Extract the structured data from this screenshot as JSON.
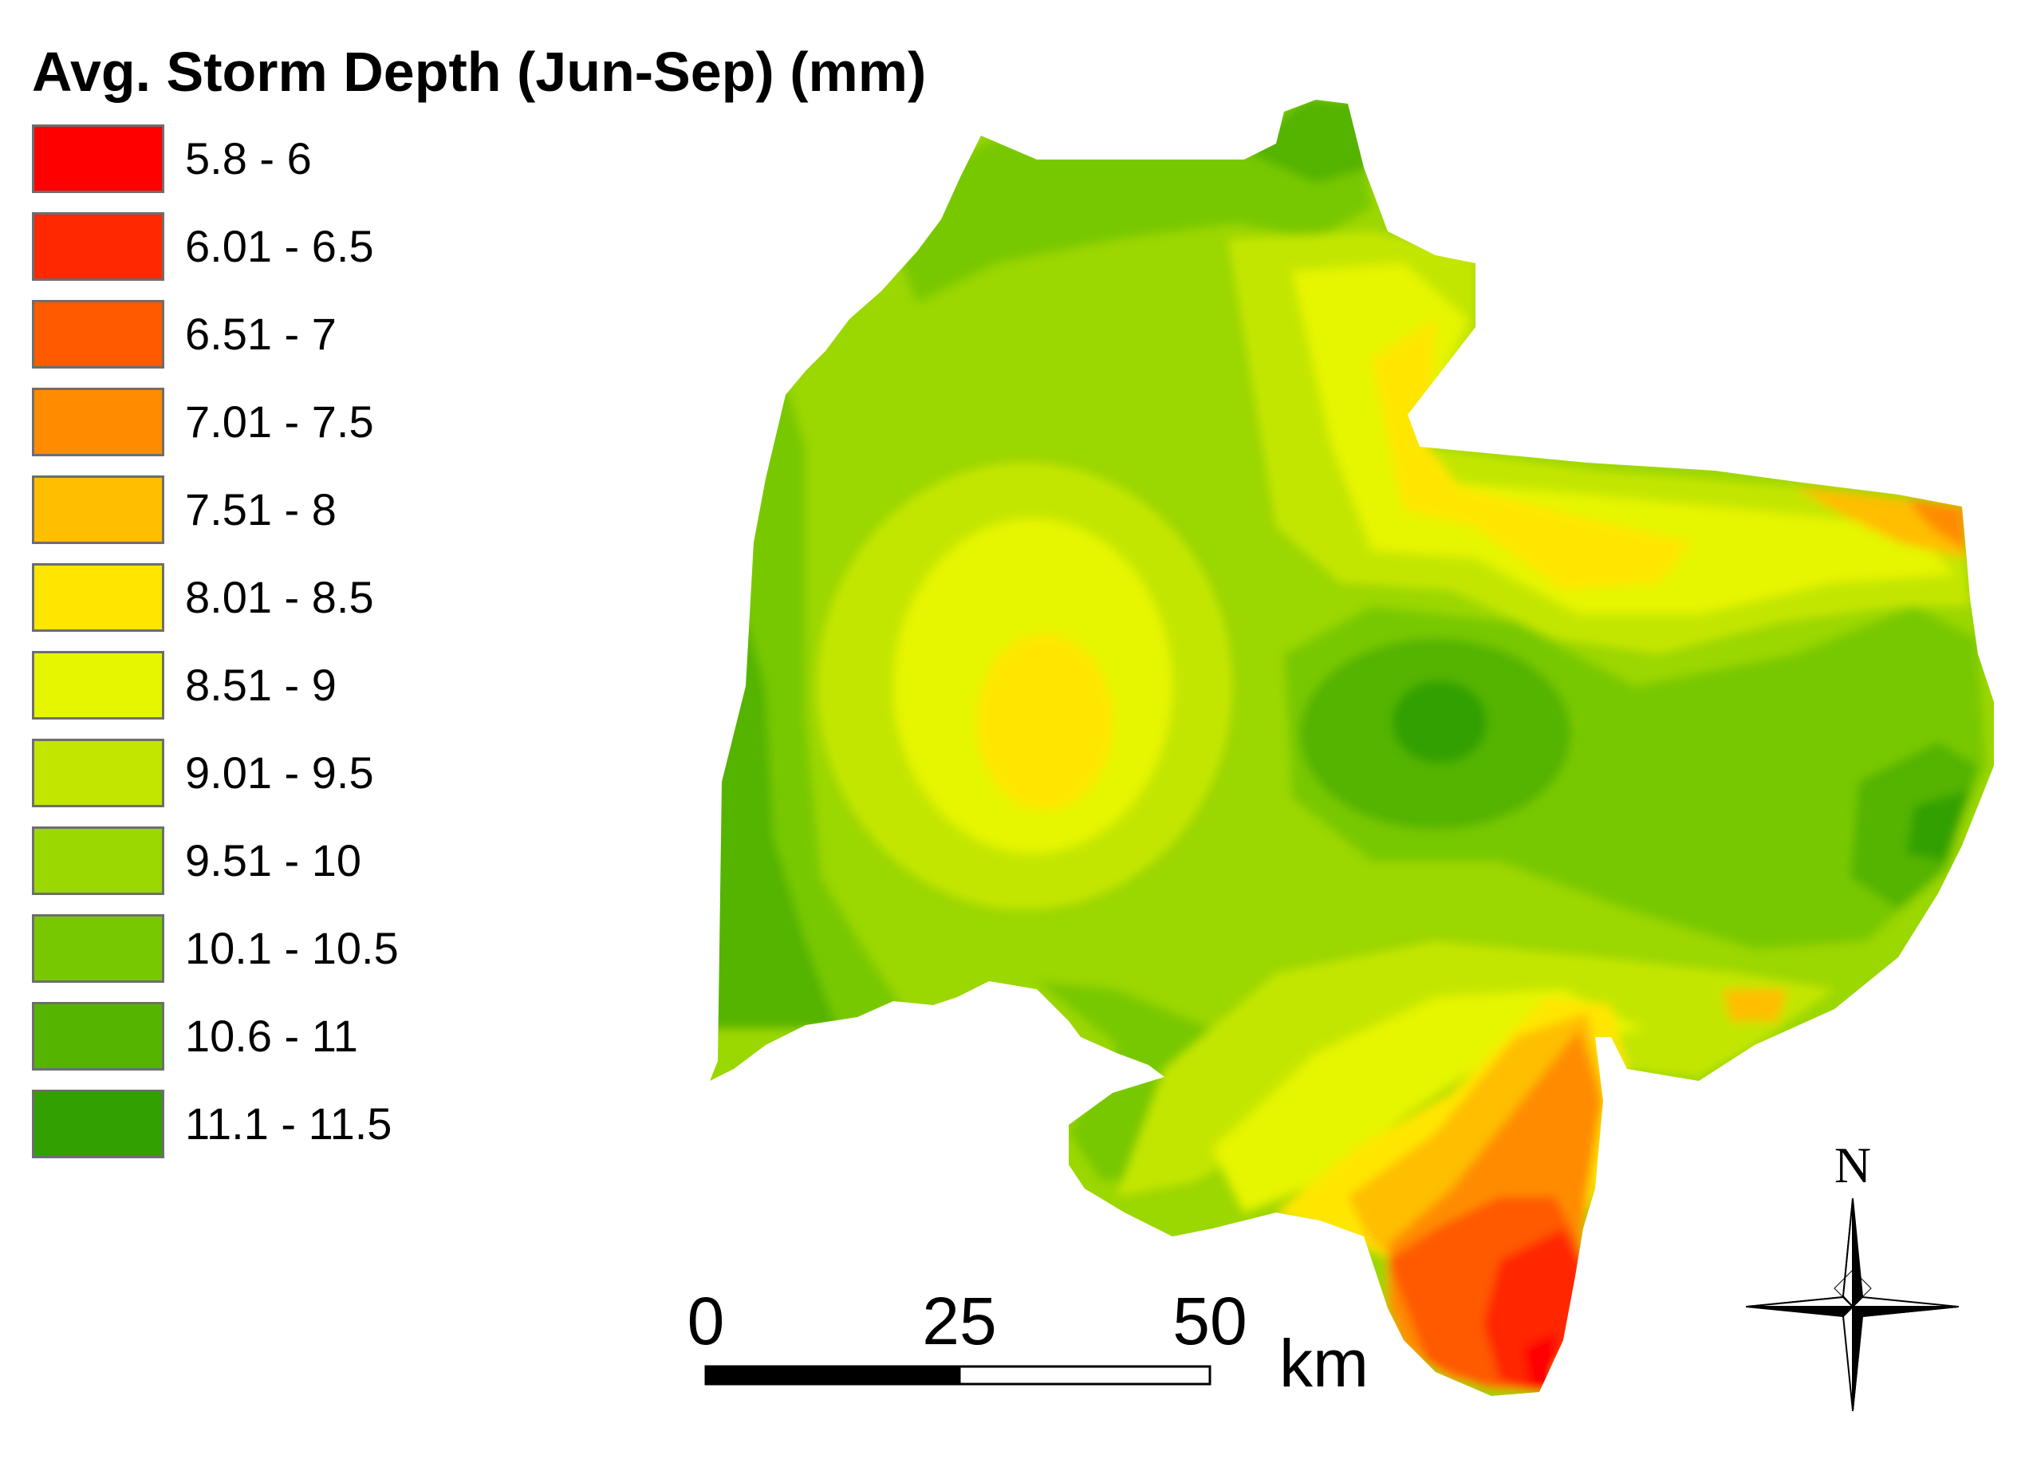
{
  "legend": {
    "title": "Avg. Storm Depth (Jun-Sep) (mm)",
    "items": [
      {
        "label": "5.8 - 6",
        "color": "#ff0000"
      },
      {
        "label": "6.01 - 6.5",
        "color": "#ff2800"
      },
      {
        "label": "6.51 - 7",
        "color": "#ff5a00"
      },
      {
        "label": "7.01 - 7.5",
        "color": "#ff8c00"
      },
      {
        "label": "7.51 - 8",
        "color": "#ffbe00"
      },
      {
        "label": "8.01 - 8.5",
        "color": "#ffe600"
      },
      {
        "label": "8.51 - 9",
        "color": "#e6f500"
      },
      {
        "label": "9.01 - 9.5",
        "color": "#c3e600"
      },
      {
        "label": "9.51 - 10",
        "color": "#9bd700"
      },
      {
        "label": "10.1 - 10.5",
        "color": "#78c800"
      },
      {
        "label": "10.6 - 11",
        "color": "#55b400"
      },
      {
        "label": "11.1 - 11.5",
        "color": "#32a000"
      }
    ]
  },
  "scale_bar": {
    "ticks": [
      "0",
      "25",
      "50"
    ],
    "unit": "km"
  },
  "north_arrow": {
    "label": "N",
    "icon": "compass-rose-icon"
  }
}
